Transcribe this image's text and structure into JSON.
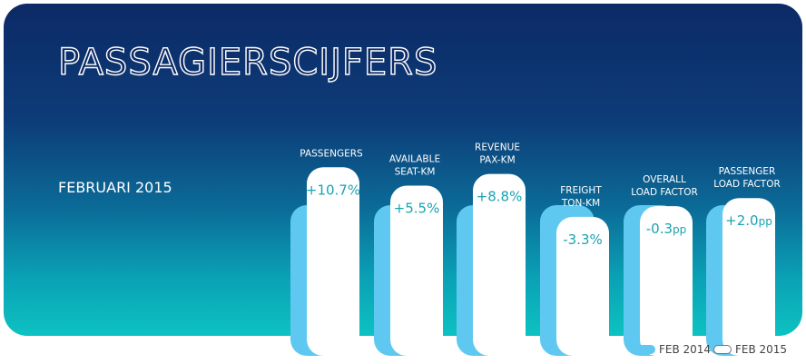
{
  "header": {
    "title": "PASSAGIERSCIJFERS",
    "period": "FEBRUARI 2015"
  },
  "chart_data": {
    "type": "bar",
    "categories": [
      [
        "PASSENGERS"
      ],
      [
        "AVAILABLE",
        "SEAT-KM"
      ],
      [
        "REVENUE",
        "PAX-KM"
      ],
      [
        "FREIGHT",
        "TON-KM"
      ],
      [
        "OVERALL",
        "LOAD FACTOR"
      ],
      [
        "PASSENGER",
        "LOAD FACTOR"
      ]
    ],
    "series": [
      {
        "name": "FEB 2014",
        "values": [
          100,
          100,
          100,
          100,
          100,
          100
        ]
      },
      {
        "name": "FEB 2015",
        "values": [
          110.7,
          105.5,
          108.8,
          96.7,
          99.7,
          102.0
        ]
      }
    ],
    "labels": [
      {
        "value": "+10.7",
        "unit": "%"
      },
      {
        "value": "+5.5",
        "unit": "%"
      },
      {
        "value": "+8.8",
        "unit": "%"
      },
      {
        "value": "-3.3",
        "unit": "%"
      },
      {
        "value": "-0.3",
        "unit": "pp"
      },
      {
        "value": "+2.0",
        "unit": "pp"
      }
    ],
    "colors": {
      "feb2014": "#5fc8f0",
      "feb2015": "#ffffff",
      "label": "#1aa3b0",
      "axis_text": "#ffffff"
    }
  },
  "legend": {
    "feb2014": "FEB 2014",
    "feb2015": "FEB 2015"
  }
}
